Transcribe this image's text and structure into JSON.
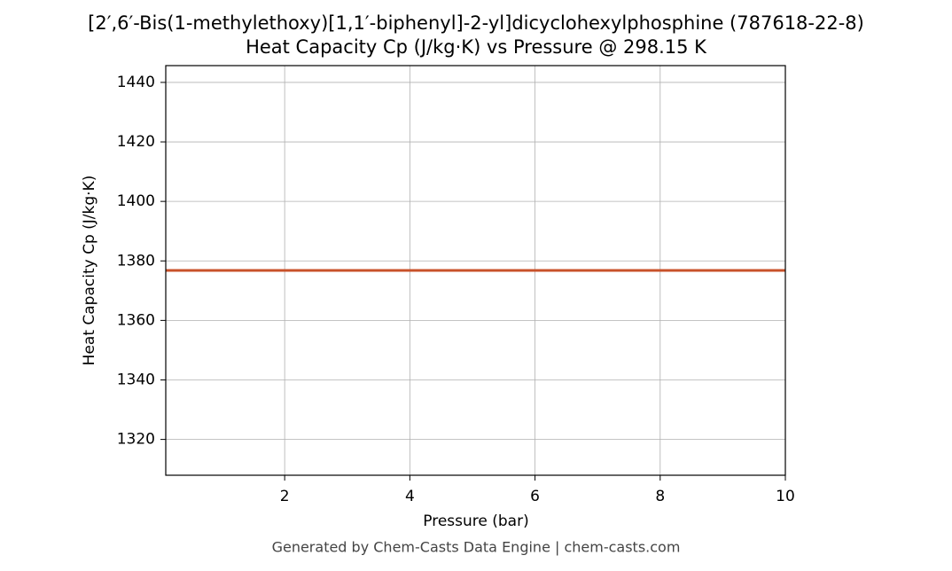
{
  "chart_data": {
    "type": "line",
    "title": "[2′,6′-Bis(1-methylethoxy)[1,1′-biphenyl]-2-yl]dicyclohexylphosphine (787618-22-8)",
    "subtitle": "Heat Capacity Cp (J/kg·K) vs Pressure @ 298.15 K",
    "x_label": "Pressure (bar)",
    "y_label": "Heat Capacity Cp (J/kg·K)",
    "x": [
      0.1,
      10
    ],
    "series": [
      {
        "name": "Heat Capacity Cp",
        "color": "#c8522a",
        "values": [
          1376.8,
          1376.8
        ]
      }
    ],
    "xlim": [
      0.1,
      10
    ],
    "xticks": [
      2,
      4,
      6,
      8,
      10
    ],
    "ylim": [
      1307.96,
      1445.64
    ],
    "yticks": [
      1320,
      1340,
      1360,
      1380,
      1400,
      1420,
      1440
    ],
    "grid": true
  },
  "footer": "Generated by Chem-Casts Data Engine | chem-casts.com"
}
